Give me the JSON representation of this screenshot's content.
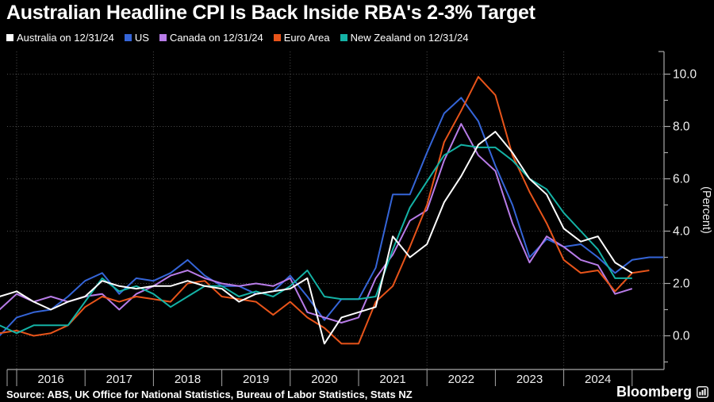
{
  "title": "Australian Headline CPI Is Back Inside RBA's 2-3% Target",
  "legend": {
    "items": [
      {
        "id": "australia",
        "label": "Australia on 12/31/24",
        "color": "#FFFFFF"
      },
      {
        "id": "us",
        "label": "US",
        "color": "#3565D8"
      },
      {
        "id": "canada",
        "label": "Canada on 12/31/24",
        "color": "#B87CE8"
      },
      {
        "id": "euro-area",
        "label": "Euro Area",
        "color": "#E8541A"
      },
      {
        "id": "new-zealand",
        "label": "New Zealand on 12/31/24",
        "color": "#14B2A5"
      }
    ]
  },
  "chart_data": {
    "type": "line",
    "title": "Australian Headline CPI Is Back Inside RBA's 2-3% Target",
    "ylabel_right": "(Percent)",
    "y_unit": "percent",
    "ylim": [
      -1.3,
      10.9
    ],
    "yticks_labeled": [
      0.0,
      2.0,
      4.0,
      6.0,
      8.0,
      10.0
    ],
    "yticks_minor": [
      -1.0,
      1.0,
      3.0,
      5.0,
      7.0,
      9.0
    ],
    "grid": "dotted",
    "x_frequency": "quarterly",
    "x_tick_years": [
      "2016",
      "2017",
      "2018",
      "2019",
      "2020",
      "2021",
      "2022",
      "2023",
      "2024"
    ],
    "x_gridline_years": [
      "2016",
      "2018",
      "2020",
      "2022",
      "2024"
    ],
    "x": [
      "2015Q3",
      "2015Q4",
      "2016Q1",
      "2016Q2",
      "2016Q3",
      "2016Q4",
      "2017Q1",
      "2017Q2",
      "2017Q3",
      "2017Q4",
      "2018Q1",
      "2018Q2",
      "2018Q3",
      "2018Q4",
      "2019Q1",
      "2019Q2",
      "2019Q3",
      "2019Q4",
      "2020Q1",
      "2020Q2",
      "2020Q3",
      "2020Q4",
      "2021Q1",
      "2021Q2",
      "2021Q3",
      "2021Q4",
      "2022Q1",
      "2022Q2",
      "2022Q3",
      "2022Q4",
      "2023Q1",
      "2023Q2",
      "2023Q3",
      "2023Q4",
      "2024Q1",
      "2024Q2",
      "2024Q3",
      "2024Q4",
      "2025Q1",
      "2025Q2"
    ],
    "series": [
      {
        "name": "Australia on 12/31/24",
        "id": "australia",
        "color": "#FFFFFF",
        "values": [
          1.5,
          1.7,
          1.3,
          1.0,
          1.3,
          1.5,
          2.1,
          1.9,
          1.8,
          1.9,
          1.9,
          2.1,
          1.9,
          1.8,
          1.3,
          1.6,
          1.7,
          1.8,
          2.2,
          -0.3,
          0.7,
          0.9,
          1.1,
          3.8,
          3.0,
          3.5,
          5.1,
          6.1,
          7.3,
          7.8,
          7.0,
          6.0,
          5.4,
          4.1,
          3.6,
          3.8,
          2.8,
          2.4
        ]
      },
      {
        "name": "US",
        "id": "us",
        "color": "#3565D8",
        "values": [
          0.0,
          0.7,
          0.9,
          1.0,
          1.5,
          2.1,
          2.4,
          1.6,
          2.2,
          2.1,
          2.4,
          2.9,
          2.3,
          1.9,
          1.9,
          1.6,
          1.7,
          2.3,
          1.5,
          0.6,
          1.4,
          1.4,
          2.6,
          5.4,
          5.4,
          7.0,
          8.5,
          9.1,
          8.2,
          6.5,
          5.0,
          3.0,
          3.7,
          3.4,
          3.5,
          3.0,
          2.4,
          2.9,
          3.0,
          3.0
        ]
      },
      {
        "name": "Canada on 12/31/24",
        "id": "canada",
        "color": "#B87CE8",
        "values": [
          1.0,
          1.6,
          1.3,
          1.5,
          1.3,
          1.5,
          1.6,
          1.0,
          1.6,
          1.9,
          2.3,
          2.5,
          2.2,
          2.0,
          1.9,
          2.0,
          1.9,
          2.2,
          0.9,
          0.7,
          0.5,
          0.7,
          2.2,
          3.1,
          4.4,
          4.8,
          6.7,
          8.1,
          6.9,
          6.3,
          4.3,
          2.8,
          3.8,
          3.4,
          2.9,
          2.7,
          1.6,
          1.8
        ]
      },
      {
        "name": "Euro Area",
        "id": "euro-area",
        "color": "#E8541A",
        "values": [
          0.1,
          0.2,
          0.0,
          0.1,
          0.4,
          1.1,
          1.5,
          1.3,
          1.5,
          1.4,
          1.3,
          2.0,
          2.1,
          1.5,
          1.4,
          1.3,
          0.8,
          1.3,
          0.7,
          0.3,
          -0.3,
          -0.3,
          1.3,
          1.9,
          3.4,
          5.0,
          7.4,
          8.6,
          9.9,
          9.2,
          6.9,
          5.5,
          4.3,
          2.9,
          2.4,
          2.5,
          1.7,
          2.4,
          2.5
        ]
      },
      {
        "name": "New Zealand on 12/31/24",
        "id": "new-zealand",
        "color": "#14B2A5",
        "values": [
          0.4,
          0.1,
          0.4,
          0.4,
          0.4,
          1.3,
          2.2,
          1.7,
          1.9,
          1.6,
          1.1,
          1.5,
          1.9,
          1.9,
          1.5,
          1.7,
          1.5,
          1.9,
          2.5,
          1.5,
          1.4,
          1.4,
          1.5,
          3.3,
          4.9,
          5.9,
          6.9,
          7.3,
          7.2,
          7.2,
          6.7,
          6.0,
          5.6,
          4.7,
          4.0,
          3.3,
          2.2,
          2.2
        ]
      }
    ],
    "legend_position": "top",
    "colors": {
      "background": "#000000",
      "grid": "#4E4E4E",
      "axis": "#A8A8A8",
      "tick_text": "#F0F0F0"
    }
  },
  "footer": {
    "source": "Source: ABS, UK Office for National Statistics, Bureau of Labor Statistics, Stats NZ",
    "brand": "Bloomberg"
  }
}
